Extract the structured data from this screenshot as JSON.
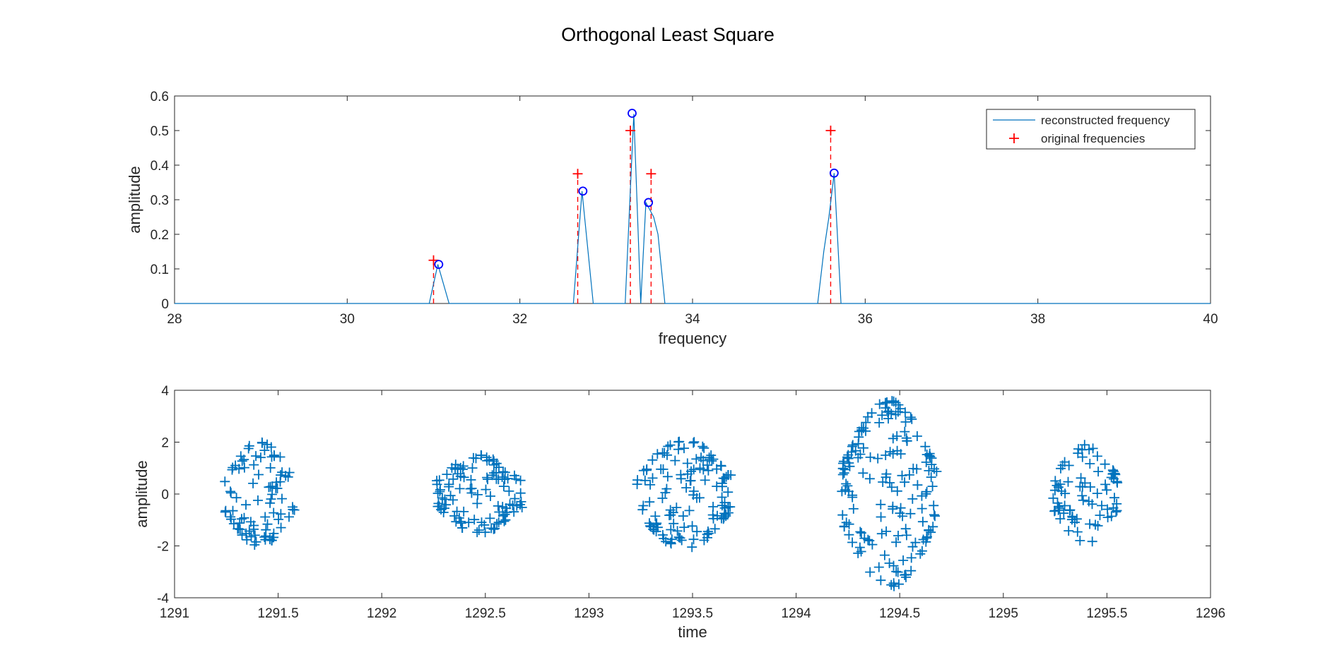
{
  "figure": {
    "title": "Orthogonal Least Square"
  },
  "chart_data": [
    {
      "type": "line",
      "xlabel": "frequency",
      "ylabel": "amplitude",
      "xlim": [
        28,
        40
      ],
      "ylim": [
        0,
        0.6
      ],
      "xticks": [
        "28",
        "30",
        "32",
        "34",
        "36",
        "38",
        "40"
      ],
      "yticks": [
        "0",
        "0.1",
        "0.2",
        "0.3",
        "0.4",
        "0.5",
        "0.6"
      ],
      "legend": {
        "placement": "top-right",
        "entries": [
          "reconstructed frequency",
          "original frequencies"
        ]
      },
      "colors": {
        "reconstructed": "#0072BD",
        "original": "#FF0000",
        "peaks": "#0000FF"
      },
      "series": [
        {
          "name": "reconstructed frequency",
          "x": [
            28,
            30.95,
            31.05,
            31.18,
            32.62,
            32.72,
            32.85,
            33.22,
            33.32,
            33.4,
            33.46,
            33.55,
            33.6,
            33.68,
            35.45,
            35.52,
            35.58,
            35.64,
            35.72,
            40
          ],
          "y": [
            0,
            0,
            0.113,
            0,
            0,
            0.325,
            0,
            0,
            0.548,
            0,
            0.292,
            0.25,
            0.2,
            0,
            0,
            0.15,
            0.25,
            0.377,
            0,
            0
          ]
        },
        {
          "name": "original frequencies",
          "x": [
            31.0,
            32.67,
            33.28,
            33.52,
            35.6
          ],
          "y": [
            0.125,
            0.375,
            0.5,
            0.375,
            0.5
          ]
        }
      ],
      "peaks": {
        "x": [
          31.06,
          32.73,
          33.3,
          33.49,
          35.64
        ],
        "y": [
          0.113,
          0.325,
          0.55,
          0.292,
          0.377
        ]
      }
    },
    {
      "type": "scatter",
      "xlabel": "time",
      "ylabel": "amplitude",
      "xlim": [
        1291,
        1296
      ],
      "ylim": [
        -4,
        4
      ],
      "xticks": [
        "1291",
        "1291.5",
        "1292",
        "1292.5",
        "1293",
        "1293.5",
        "1294",
        "1294.5",
        "1295",
        "1295.5",
        "1296"
      ],
      "yticks": [
        "-4",
        "-2",
        "0",
        "2",
        "4"
      ],
      "colors": {
        "marker": "#0072BD"
      },
      "clusters": [
        {
          "t_start": 1291.24,
          "t_end": 1291.58,
          "amplitude": 2.0,
          "points": 90
        },
        {
          "t_start": 1292.26,
          "t_end": 1292.68,
          "amplitude": 1.5,
          "points": 110
        },
        {
          "t_start": 1293.23,
          "t_end": 1293.69,
          "amplitude": 2.1,
          "points": 130
        },
        {
          "t_start": 1294.22,
          "t_end": 1294.68,
          "amplitude": 3.6,
          "points": 170
        },
        {
          "t_start": 1295.24,
          "t_end": 1295.56,
          "amplitude": 1.9,
          "points": 80
        }
      ]
    }
  ]
}
